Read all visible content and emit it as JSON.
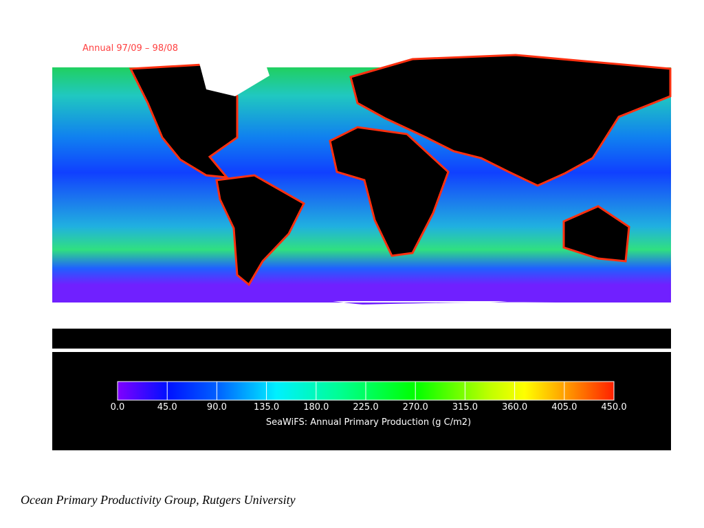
{
  "map": {
    "title": "Annual 97/09 – 98/08",
    "colorbar": {
      "label": "SeaWiFS: Annual Primary Production (g C/m2)",
      "lim": [
        0,
        450
      ],
      "ticks": [
        {
          "value": 0,
          "label": "0.0"
        },
        {
          "value": 45,
          "label": "45.0"
        },
        {
          "value": 90,
          "label": "90.0"
        },
        {
          "value": 135,
          "label": "135.0"
        },
        {
          "value": 180,
          "label": "180.0"
        },
        {
          "value": 225,
          "label": "225.0"
        },
        {
          "value": 270,
          "label": "270.0"
        },
        {
          "value": 315,
          "label": "315.0"
        },
        {
          "value": 360,
          "label": "360.0"
        },
        {
          "value": 405,
          "label": "405.0"
        },
        {
          "value": 450,
          "label": "450.0"
        }
      ]
    }
  },
  "footer": "Ocean Primary Productivity Group, Rutgers University"
}
